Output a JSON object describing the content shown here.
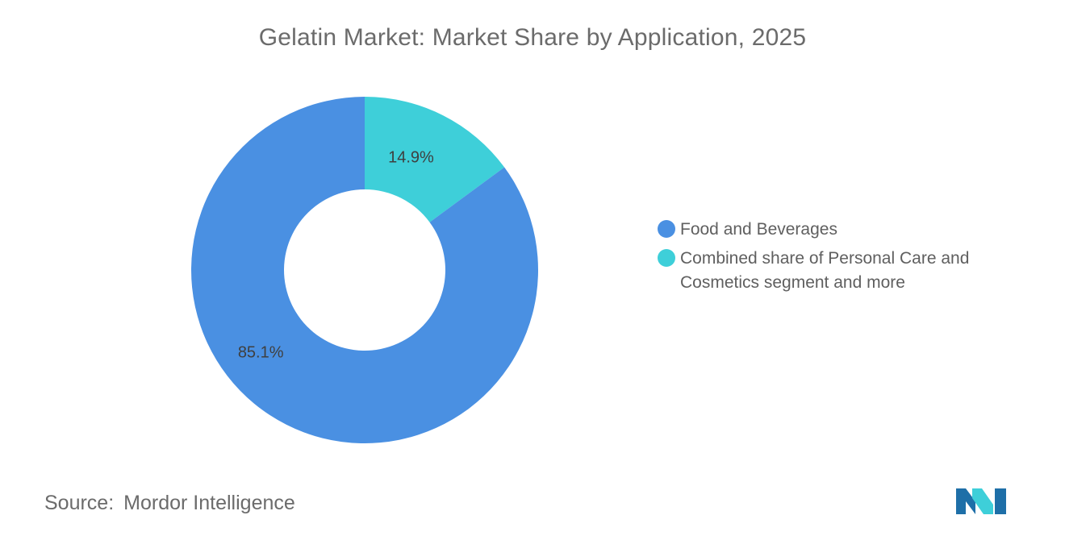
{
  "chart_data": {
    "type": "pie",
    "title": "Gelatin Market: Market Share by Application, 2025",
    "donut": true,
    "legend_position": "right",
    "slices": [
      {
        "name": "Food and Beverages",
        "value": 85.1,
        "label": "85.1%",
        "color": "#4a90e2"
      },
      {
        "name": "Combined share of Personal Care and Cosmetics segment and more",
        "value": 14.9,
        "label": "14.9%",
        "color": "#3ecfd9"
      }
    ]
  },
  "source": {
    "label": "Source:",
    "value": "Mordor Intelligence"
  },
  "logo": {
    "icon": "mordor-intelligence-logo",
    "colors": [
      "#1e6fa8",
      "#3ecfd9"
    ]
  }
}
